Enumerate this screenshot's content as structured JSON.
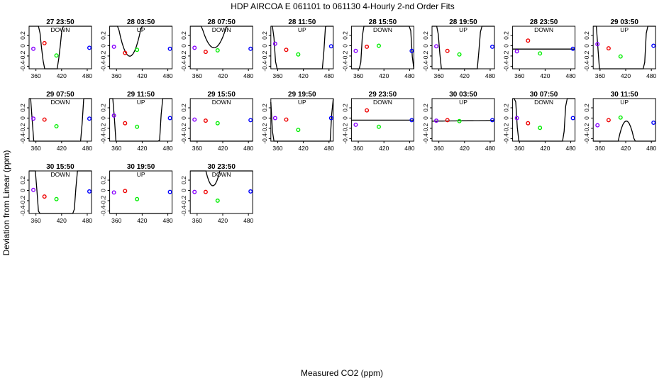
{
  "title": "HDP   AIRCOA E    061101 to 061130   4-Hourly 2-nd Order Fits",
  "xlabel": "Measured CO2 (ppm)",
  "ylabel": "Deviation from Linear (ppm)",
  "colors": {
    "fit": "#000000",
    "frame": "#000000",
    "series": [
      "#8800ff",
      "#ee0000",
      "#00ee00",
      "#0000ff"
    ]
  },
  "chart_data": [
    {
      "type": "scatter",
      "title": "27 23:50",
      "subtitle": "DOWN",
      "x": [
        354,
        380,
        408,
        485
      ],
      "y": [
        -0.06,
        0.05,
        -0.19,
        -0.04
      ],
      "fit": [
        0.00172,
        -1.358,
        267.2
      ],
      "xlim": [
        344,
        490
      ],
      "ylim": [
        -0.45,
        0.38
      ],
      "xticks": [
        360,
        420,
        480
      ],
      "yticks": [
        -0.4,
        -0.2,
        0.0,
        0.2
      ]
    },
    {
      "type": "scatter",
      "title": "28 03:50",
      "subtitle": "UP",
      "x": [
        354,
        380,
        408,
        485
      ],
      "y": [
        -0.02,
        -0.14,
        -0.08,
        -0.06
      ],
      "fit": [
        0.0008,
        -0.6256,
        122.1
      ],
      "xlim": [
        344,
        490
      ],
      "ylim": [
        -0.45,
        0.38
      ],
      "xticks": [
        360,
        420,
        480
      ],
      "yticks": [
        -0.4,
        -0.2,
        0.0,
        0.2
      ]
    },
    {
      "type": "scatter",
      "title": "28 07:50",
      "subtitle": "DOWN",
      "x": [
        354,
        380,
        408,
        485
      ],
      "y": [
        -0.04,
        -0.12,
        -0.09,
        -0.06
      ],
      "fit": [
        0.0005,
        -0.3996,
        79.8
      ],
      "xlim": [
        344,
        490
      ],
      "ylim": [
        -0.45,
        0.38
      ],
      "xticks": [
        360,
        420,
        480
      ],
      "yticks": [
        -0.4,
        -0.2,
        0.0,
        0.2
      ]
    },
    {
      "type": "scatter",
      "title": "28 11:50",
      "subtitle": "UP",
      "x": [
        354,
        380,
        408,
        485
      ],
      "y": [
        0.04,
        -0.08,
        -0.17,
        -0.01
      ],
      "fit": [
        0.0011,
        -0.9035,
        181.8
      ],
      "xlim": [
        344,
        490
      ],
      "ylim": [
        -0.45,
        0.38
      ],
      "xticks": [
        360,
        420,
        480
      ],
      "yticks": [
        -0.4,
        -0.2,
        0.0,
        0.2
      ]
    },
    {
      "type": "scatter",
      "title": "28 15:50",
      "subtitle": "DOWN",
      "x": [
        354,
        380,
        408,
        485
      ],
      "y": [
        -0.1,
        -0.02,
        0.0,
        -0.1
      ],
      "fit": [
        -0.0012,
        1.0236,
        -214.2
      ],
      "xlim": [
        344,
        490
      ],
      "ylim": [
        -0.45,
        0.38
      ],
      "xticks": [
        360,
        420,
        480
      ],
      "yticks": [
        -0.4,
        -0.2,
        0.0,
        0.2
      ]
    },
    {
      "type": "scatter",
      "title": "28 19:50",
      "subtitle": "UP",
      "x": [
        354,
        380,
        408,
        485
      ],
      "y": [
        -0.01,
        -0.1,
        -0.17,
        -0.02
      ],
      "fit": [
        0.0011,
        -0.8969,
        180.4
      ],
      "xlim": [
        344,
        490
      ],
      "ylim": [
        -0.45,
        0.38
      ],
      "xticks": [
        360,
        420,
        480
      ],
      "yticks": [
        -0.4,
        -0.2,
        0.0,
        0.2
      ]
    },
    {
      "type": "scatter",
      "title": "28 23:50",
      "subtitle": "DOWN",
      "x": [
        354,
        380,
        408,
        485
      ],
      "y": [
        -0.11,
        0.1,
        -0.15,
        -0.06
      ],
      "fit": [
        0.0,
        0.0,
        -0.065
      ],
      "xlim": [
        344,
        490
      ],
      "ylim": [
        -0.45,
        0.38
      ],
      "xticks": [
        360,
        420,
        480
      ],
      "yticks": [
        -0.4,
        -0.2,
        0.0,
        0.2
      ]
    },
    {
      "type": "scatter",
      "title": "29 03:50",
      "subtitle": "UP",
      "x": [
        354,
        380,
        408,
        485
      ],
      "y": [
        0.03,
        -0.05,
        -0.21,
        0.0
      ],
      "fit": [
        0.0014,
        -1.1498,
        231.7
      ],
      "xlim": [
        344,
        490
      ],
      "ylim": [
        -0.45,
        0.38
      ],
      "xticks": [
        360,
        420,
        480
      ],
      "yticks": [
        -0.4,
        -0.2,
        0.0,
        0.2
      ]
    },
    {
      "type": "scatter",
      "title": "29 07:50",
      "subtitle": "DOWN",
      "x": [
        354,
        380,
        408,
        485
      ],
      "y": [
        -0.01,
        -0.03,
        -0.16,
        -0.01
      ],
      "fit": [
        0.0011,
        -0.9018,
        181.0
      ],
      "xlim": [
        344,
        490
      ],
      "ylim": [
        -0.45,
        0.38
      ],
      "xticks": [
        360,
        420,
        480
      ],
      "yticks": [
        -0.4,
        -0.2,
        0.0,
        0.2
      ]
    },
    {
      "type": "scatter",
      "title": "29 11:50",
      "subtitle": "UP",
      "x": [
        354,
        380,
        408,
        485
      ],
      "y": [
        0.05,
        -0.1,
        -0.17,
        0.0
      ],
      "fit": [
        0.0013,
        -1.0646,
        214.1
      ],
      "xlim": [
        344,
        490
      ],
      "ylim": [
        -0.45,
        0.38
      ],
      "xticks": [
        360,
        420,
        480
      ],
      "yticks": [
        -0.4,
        -0.2,
        0.0,
        0.2
      ]
    },
    {
      "type": "scatter",
      "title": "29 15:50",
      "subtitle": "DOWN",
      "x": [
        354,
        380,
        408,
        485
      ],
      "y": [
        -0.03,
        -0.05,
        -0.1,
        -0.04
      ],
      "fit": [
        0.0005,
        -0.4148,
        82.6
      ],
      "xlim": [
        344,
        490
      ],
      "ylim": [
        -0.45,
        0.38
      ],
      "xticks": [
        360,
        420,
        480
      ],
      "yticks": [
        -0.4,
        -0.2,
        0.0,
        0.2
      ]
    },
    {
      "type": "scatter",
      "title": "29 19:50",
      "subtitle": "UP",
      "x": [
        354,
        380,
        408,
        485
      ],
      "y": [
        0.0,
        -0.03,
        -0.23,
        0.0
      ],
      "fit": [
        0.0011,
        -0.915,
        184.9
      ],
      "xlim": [
        344,
        490
      ],
      "ylim": [
        -0.45,
        0.38
      ],
      "xticks": [
        360,
        420,
        480
      ],
      "yticks": [
        -0.4,
        -0.2,
        0.0,
        0.2
      ]
    },
    {
      "type": "scatter",
      "title": "29 23:50",
      "subtitle": "DOWN",
      "x": [
        354,
        380,
        408,
        485
      ],
      "y": [
        -0.13,
        0.15,
        -0.17,
        -0.04
      ],
      "fit": [
        0.0,
        0.0,
        -0.04
      ],
      "xlim": [
        344,
        490
      ],
      "ylim": [
        -0.45,
        0.38
      ],
      "xticks": [
        360,
        420,
        480
      ],
      "yticks": [
        -0.4,
        -0.2,
        0.0,
        0.2
      ]
    },
    {
      "type": "scatter",
      "title": "30 03:50",
      "subtitle": "UP",
      "x": [
        354,
        380,
        408,
        485
      ],
      "y": [
        -0.05,
        -0.04,
        -0.06,
        -0.04
      ],
      "fit": [
        0.0,
        0.0001,
        -0.095
      ],
      "xlim": [
        344,
        490
      ],
      "ylim": [
        -0.45,
        0.38
      ],
      "xticks": [
        360,
        420,
        480
      ],
      "yticks": [
        -0.4,
        -0.2,
        0.0,
        0.2
      ]
    },
    {
      "type": "scatter",
      "title": "30 07:50",
      "subtitle": "DOWN",
      "x": [
        354,
        380,
        408,
        485
      ],
      "y": [
        0.0,
        -0.1,
        -0.19,
        0.0
      ],
      "fit": [
        0.0012,
        -0.984,
        197.9
      ],
      "xlim": [
        344,
        490
      ],
      "ylim": [
        -0.45,
        0.38
      ],
      "xticks": [
        360,
        420,
        480
      ],
      "yticks": [
        -0.4,
        -0.2,
        0.0,
        0.2
      ]
    },
    {
      "type": "scatter",
      "title": "30 11:50",
      "subtitle": "UP",
      "x": [
        354,
        380,
        408,
        485
      ],
      "y": [
        -0.14,
        -0.04,
        0.01,
        -0.09
      ],
      "fit": [
        -0.0011,
        0.9271,
        -195.4
      ],
      "xlim": [
        344,
        490
      ],
      "ylim": [
        -0.45,
        0.38
      ],
      "xticks": [
        360,
        420,
        480
      ],
      "yticks": [
        -0.4,
        -0.2,
        0.0,
        0.2
      ]
    },
    {
      "type": "scatter",
      "title": "30 15:50",
      "subtitle": "DOWN",
      "x": [
        354,
        380,
        408,
        485
      ],
      "y": [
        0.01,
        -0.12,
        -0.17,
        -0.02
      ],
      "fit": [
        0.0013,
        -1.06,
        213.4
      ],
      "xlim": [
        344,
        490
      ],
      "ylim": [
        -0.45,
        0.38
      ],
      "xticks": [
        360,
        420,
        480
      ],
      "yticks": [
        -0.4,
        -0.2,
        0.0,
        0.2
      ]
    },
    {
      "type": "scatter",
      "title": "30 19:50",
      "subtitle": "UP",
      "x": [
        354,
        380,
        408,
        485
      ],
      "y": [
        -0.04,
        -0.01,
        -0.17,
        -0.03
      ],
      "fit": [
        0.0008,
        -0.656,
        126.5
      ],
      "xlim": [
        344,
        490
      ],
      "ylim": [
        -0.45,
        0.38
      ],
      "xticks": [
        360,
        420,
        480
      ],
      "yticks": [
        -0.4,
        -0.2,
        0.0,
        0.2
      ]
    },
    {
      "type": "scatter",
      "title": "30 23:50",
      "subtitle": "DOWN",
      "x": [
        354,
        380,
        408,
        485
      ],
      "y": [
        -0.03,
        -0.03,
        -0.2,
        -0.02
      ],
      "fit": [
        0.0011,
        -0.873,
        173.3
      ],
      "xlim": [
        344,
        490
      ],
      "ylim": [
        -0.45,
        0.38
      ],
      "xticks": [
        360,
        420,
        480
      ],
      "yticks": [
        -0.4,
        -0.2,
        0.0,
        0.2
      ]
    }
  ]
}
